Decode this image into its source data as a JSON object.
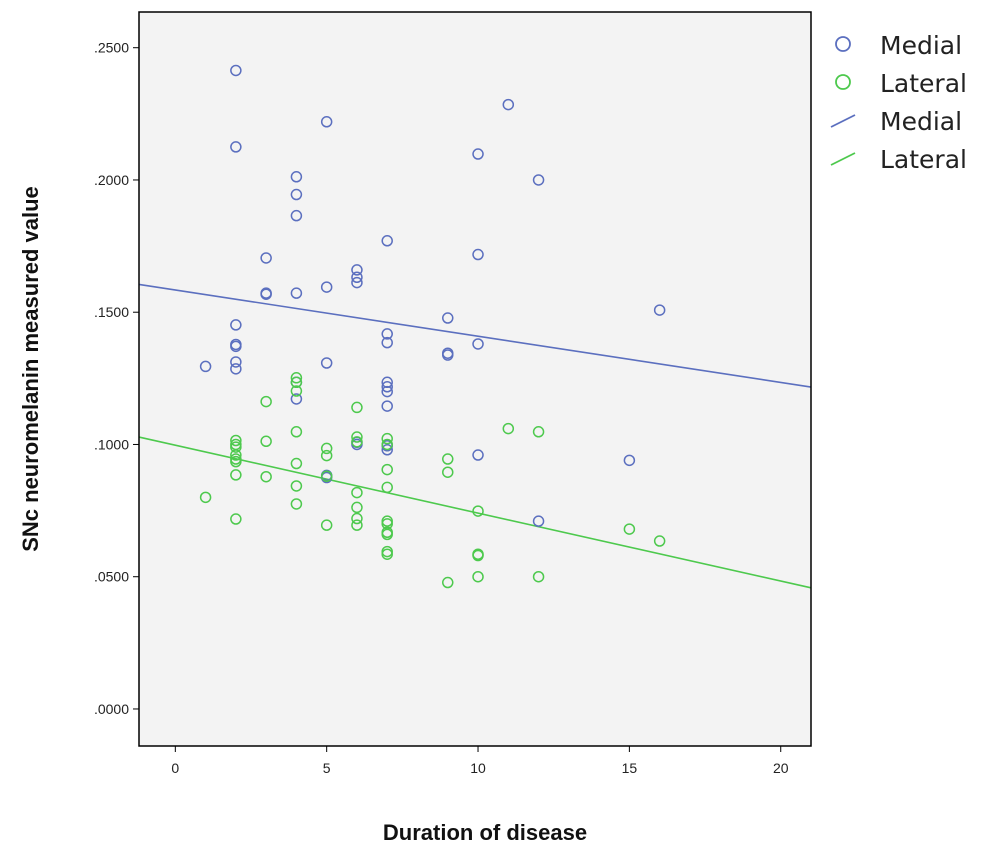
{
  "chart_data": {
    "type": "scatter",
    "xlabel": "Duration of disease",
    "ylabel": "SNc neuromelanin measured value",
    "xlim": [
      -1.2,
      21
    ],
    "ylim": [
      -0.014,
      0.2635
    ],
    "x_ticks": [
      0,
      5,
      10,
      15,
      20
    ],
    "x_tick_labels": [
      "0",
      "5",
      "10",
      "15",
      "20"
    ],
    "y_ticks": [
      0,
      0.05,
      0.1,
      0.15,
      0.2,
      0.25
    ],
    "y_tick_labels": [
      ".0000",
      ".0500",
      ".1000",
      ".1500",
      ".2000",
      ".2500"
    ],
    "grid": false,
    "legend_position": "right",
    "series": [
      {
        "name": "Medial",
        "color": "#5b6fbf",
        "points": [
          [
            1,
            0.1295
          ],
          [
            2,
            0.2414
          ],
          [
            2,
            0.2125
          ],
          [
            2,
            0.1452
          ],
          [
            2,
            0.1378
          ],
          [
            2,
            0.1371
          ],
          [
            2,
            0.1312
          ],
          [
            2,
            0.1286
          ],
          [
            3,
            0.1705
          ],
          [
            3,
            0.1572
          ],
          [
            3,
            0.1568
          ],
          [
            4,
            0.2012
          ],
          [
            4,
            0.1945
          ],
          [
            4,
            0.1865
          ],
          [
            4,
            0.1572
          ],
          [
            4,
            0.1235
          ],
          [
            4,
            0.1172
          ],
          [
            5,
            0.222
          ],
          [
            5,
            0.1595
          ],
          [
            5,
            0.1308
          ],
          [
            5,
            0.0883
          ],
          [
            5,
            0.0875
          ],
          [
            6,
            0.166
          ],
          [
            6,
            0.1632
          ],
          [
            6,
            0.1612
          ],
          [
            6,
            0.1008
          ],
          [
            6,
            0.1
          ],
          [
            7,
            0.177
          ],
          [
            7,
            0.1418
          ],
          [
            7,
            0.1385
          ],
          [
            7,
            0.1235
          ],
          [
            7,
            0.1218
          ],
          [
            7,
            0.12
          ],
          [
            7,
            0.1145
          ],
          [
            7,
            0.0995
          ],
          [
            7,
            0.098
          ],
          [
            9,
            0.1478
          ],
          [
            9,
            0.1345
          ],
          [
            9,
            0.1338
          ],
          [
            10,
            0.2098
          ],
          [
            10,
            0.1718
          ],
          [
            10,
            0.138
          ],
          [
            10,
            0.096
          ],
          [
            11,
            0.2285
          ],
          [
            12,
            0.2
          ],
          [
            12,
            0.071
          ],
          [
            15,
            0.094
          ],
          [
            16,
            0.1508
          ]
        ]
      },
      {
        "name": "Lateral",
        "color": "#4dc94d",
        "points": [
          [
            1,
            0.08
          ],
          [
            2,
            0.1015
          ],
          [
            2,
            0.1
          ],
          [
            2,
            0.099
          ],
          [
            2,
            0.096
          ],
          [
            2,
            0.0945
          ],
          [
            2,
            0.0935
          ],
          [
            2,
            0.0885
          ],
          [
            2,
            0.0718
          ],
          [
            3,
            0.1162
          ],
          [
            3,
            0.1012
          ],
          [
            3,
            0.0878
          ],
          [
            4,
            0.1252
          ],
          [
            4,
            0.1235
          ],
          [
            4,
            0.1202
          ],
          [
            4,
            0.1048
          ],
          [
            4,
            0.0928
          ],
          [
            4,
            0.0843
          ],
          [
            4,
            0.0775
          ],
          [
            5,
            0.0985
          ],
          [
            5,
            0.0958
          ],
          [
            5,
            0.088
          ],
          [
            5,
            0.0695
          ],
          [
            6,
            0.114
          ],
          [
            6,
            0.1028
          ],
          [
            6,
            0.101
          ],
          [
            6,
            0.0818
          ],
          [
            6,
            0.0762
          ],
          [
            6,
            0.072
          ],
          [
            6,
            0.0695
          ],
          [
            7,
            0.1022
          ],
          [
            7,
            0.1
          ],
          [
            7,
            0.0905
          ],
          [
            7,
            0.0838
          ],
          [
            7,
            0.071
          ],
          [
            7,
            0.07
          ],
          [
            7,
            0.0668
          ],
          [
            7,
            0.066
          ],
          [
            7,
            0.0595
          ],
          [
            7,
            0.0585
          ],
          [
            9,
            0.0945
          ],
          [
            9,
            0.0895
          ],
          [
            9,
            0.0478
          ],
          [
            10,
            0.0748
          ],
          [
            10,
            0.0585
          ],
          [
            10,
            0.058
          ],
          [
            10,
            0.05
          ],
          [
            11,
            0.106
          ],
          [
            12,
            0.1048
          ],
          [
            12,
            0.05
          ],
          [
            15,
            0.068
          ],
          [
            16,
            0.0635
          ]
        ]
      }
    ],
    "fit_lines": [
      {
        "name": "Medial",
        "color": "#5b6fbf",
        "x": [
          -1.2,
          21
        ],
        "y": [
          0.1605,
          0.1217
        ]
      },
      {
        "name": "Lateral",
        "color": "#4dc94d",
        "x": [
          -1.2,
          21
        ],
        "y": [
          0.1028,
          0.0458
        ]
      }
    ],
    "legend": [
      {
        "label": "Medial",
        "kind": "marker",
        "color": "#5b6fbf"
      },
      {
        "label": "Lateral",
        "kind": "marker",
        "color": "#4dc94d"
      },
      {
        "label": "Medial",
        "kind": "line",
        "color": "#5b6fbf"
      },
      {
        "label": "Lateral",
        "kind": "line",
        "color": "#4dc94d"
      }
    ],
    "plot_background": "#f3f3f3"
  }
}
